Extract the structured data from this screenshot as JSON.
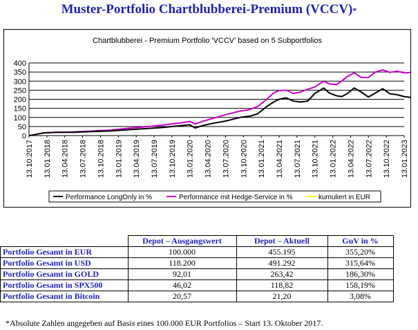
{
  "page_title": "Muster-Portfolio Chartblubberei-Premium (VCCV)",
  "page_title_mark": "*",
  "chart_data": {
    "type": "line",
    "title": "Chartblubberei - Premium Portfolio 'VCCV' based on 5 Subportfolios",
    "ylim": [
      0,
      400
    ],
    "yticks": [
      "0",
      "50",
      "100",
      "150",
      "200",
      "250",
      "300",
      "350",
      "400"
    ],
    "x_tick_labels": [
      "13.10.2017",
      "13.01.2018",
      "13.04.2018",
      "13.07.2018",
      "13.10.2018",
      "13.01.2019",
      "13.04.2019",
      "13.07.2019",
      "13.10.2019",
      "13.01.2020",
      "13.04.2020",
      "13.07.2020",
      "13.10.2020",
      "13.01.2021",
      "13.04.2021",
      "13.07.2021",
      "13.10.2021",
      "13.01.2022",
      "13.04.2022",
      "13.07.2022",
      "13.10.2022",
      "13.01.2023"
    ],
    "legend_position": "bottom",
    "grid": true,
    "series": [
      {
        "name": "Performance LongOnly in %",
        "color": "#000000",
        "points": [
          [
            0,
            0
          ],
          [
            0.3,
            5
          ],
          [
            0.8,
            15
          ],
          [
            1.5,
            18
          ],
          [
            2.5,
            18
          ],
          [
            3.5,
            22
          ],
          [
            4.5,
            25
          ],
          [
            5.5,
            32
          ],
          [
            6.5,
            38
          ],
          [
            7.5,
            45
          ],
          [
            8.5,
            55
          ],
          [
            9.0,
            60
          ],
          [
            9.3,
            42
          ],
          [
            9.7,
            55
          ],
          [
            10.3,
            68
          ],
          [
            11,
            80
          ],
          [
            11.8,
            100
          ],
          [
            12.4,
            108
          ],
          [
            12.8,
            120
          ],
          [
            13.3,
            160
          ],
          [
            13.7,
            185
          ],
          [
            14.0,
            200
          ],
          [
            14.4,
            208
          ],
          [
            14.8,
            190
          ],
          [
            15.2,
            185
          ],
          [
            15.6,
            190
          ],
          [
            16.0,
            232
          ],
          [
            16.5,
            262
          ],
          [
            16.8,
            235
          ],
          [
            17.2,
            220
          ],
          [
            17.5,
            215
          ],
          [
            17.8,
            230
          ],
          [
            18.2,
            262
          ],
          [
            18.6,
            240
          ],
          [
            19.0,
            212
          ],
          [
            19.4,
            235
          ],
          [
            19.8,
            258
          ],
          [
            20.2,
            230
          ],
          [
            20.6,
            225
          ],
          [
            21.0,
            215
          ],
          [
            21.4,
            210
          ],
          [
            21.8,
            225
          ],
          [
            22,
            225
          ]
        ]
      },
      {
        "name": "Performance mit Hedge-Service in %",
        "color": "#cc00cc",
        "points": [
          [
            0,
            0
          ],
          [
            0.3,
            5
          ],
          [
            0.8,
            15
          ],
          [
            1.5,
            18
          ],
          [
            2.5,
            20
          ],
          [
            3.5,
            25
          ],
          [
            4.5,
            30
          ],
          [
            5.5,
            40
          ],
          [
            6.5,
            48
          ],
          [
            7.5,
            58
          ],
          [
            8.5,
            70
          ],
          [
            9.0,
            78
          ],
          [
            9.3,
            64
          ],
          [
            9.7,
            78
          ],
          [
            10.3,
            95
          ],
          [
            11,
            115
          ],
          [
            11.8,
            135
          ],
          [
            12.3,
            142
          ],
          [
            12.8,
            160
          ],
          [
            13.3,
            200
          ],
          [
            13.7,
            235
          ],
          [
            14.0,
            248
          ],
          [
            14.4,
            250
          ],
          [
            14.8,
            232
          ],
          [
            15.2,
            240
          ],
          [
            15.6,
            255
          ],
          [
            16.0,
            268
          ],
          [
            16.5,
            300
          ],
          [
            16.8,
            285
          ],
          [
            17.2,
            280
          ],
          [
            17.5,
            300
          ],
          [
            17.8,
            325
          ],
          [
            18.2,
            345
          ],
          [
            18.6,
            320
          ],
          [
            19.0,
            320
          ],
          [
            19.4,
            350
          ],
          [
            19.8,
            362
          ],
          [
            20.2,
            348
          ],
          [
            20.6,
            355
          ],
          [
            21.0,
            345
          ],
          [
            21.4,
            348
          ],
          [
            21.8,
            355
          ],
          [
            22,
            355
          ]
        ]
      },
      {
        "name": "kumuliert in EUR",
        "color": "#ffff00",
        "points": []
      }
    ]
  },
  "table": {
    "headers": [
      "Depot – Ausgangswert",
      "Depot – Aktuell",
      "GuV in %"
    ],
    "rows": [
      {
        "label": "Portfolio Gesamt in EUR",
        "start": "100.000",
        "current": "455.195",
        "guv": "355,20%"
      },
      {
        "label": "Portfolio Gesamt in USD",
        "start": "118.200",
        "current": "491.292",
        "guv": "315,64%"
      },
      {
        "label": "Portfolio Gesamt in GOLD",
        "start": "92,01",
        "current": "263,42",
        "guv": "186,30%"
      },
      {
        "label": "Portfolio Gesamt in SPX500",
        "start": "46,02",
        "current": "118,82",
        "guv": "158,19%"
      },
      {
        "label": "Portfolio Gesamt in Bitcoin",
        "start": "20,57",
        "current": "21,20",
        "guv": "3,08%"
      }
    ]
  },
  "footnote": "*Absolute Zahlen angegeben auf Basis eines 100.000 EUR Portfolios – Start 13. Oktober 2017."
}
